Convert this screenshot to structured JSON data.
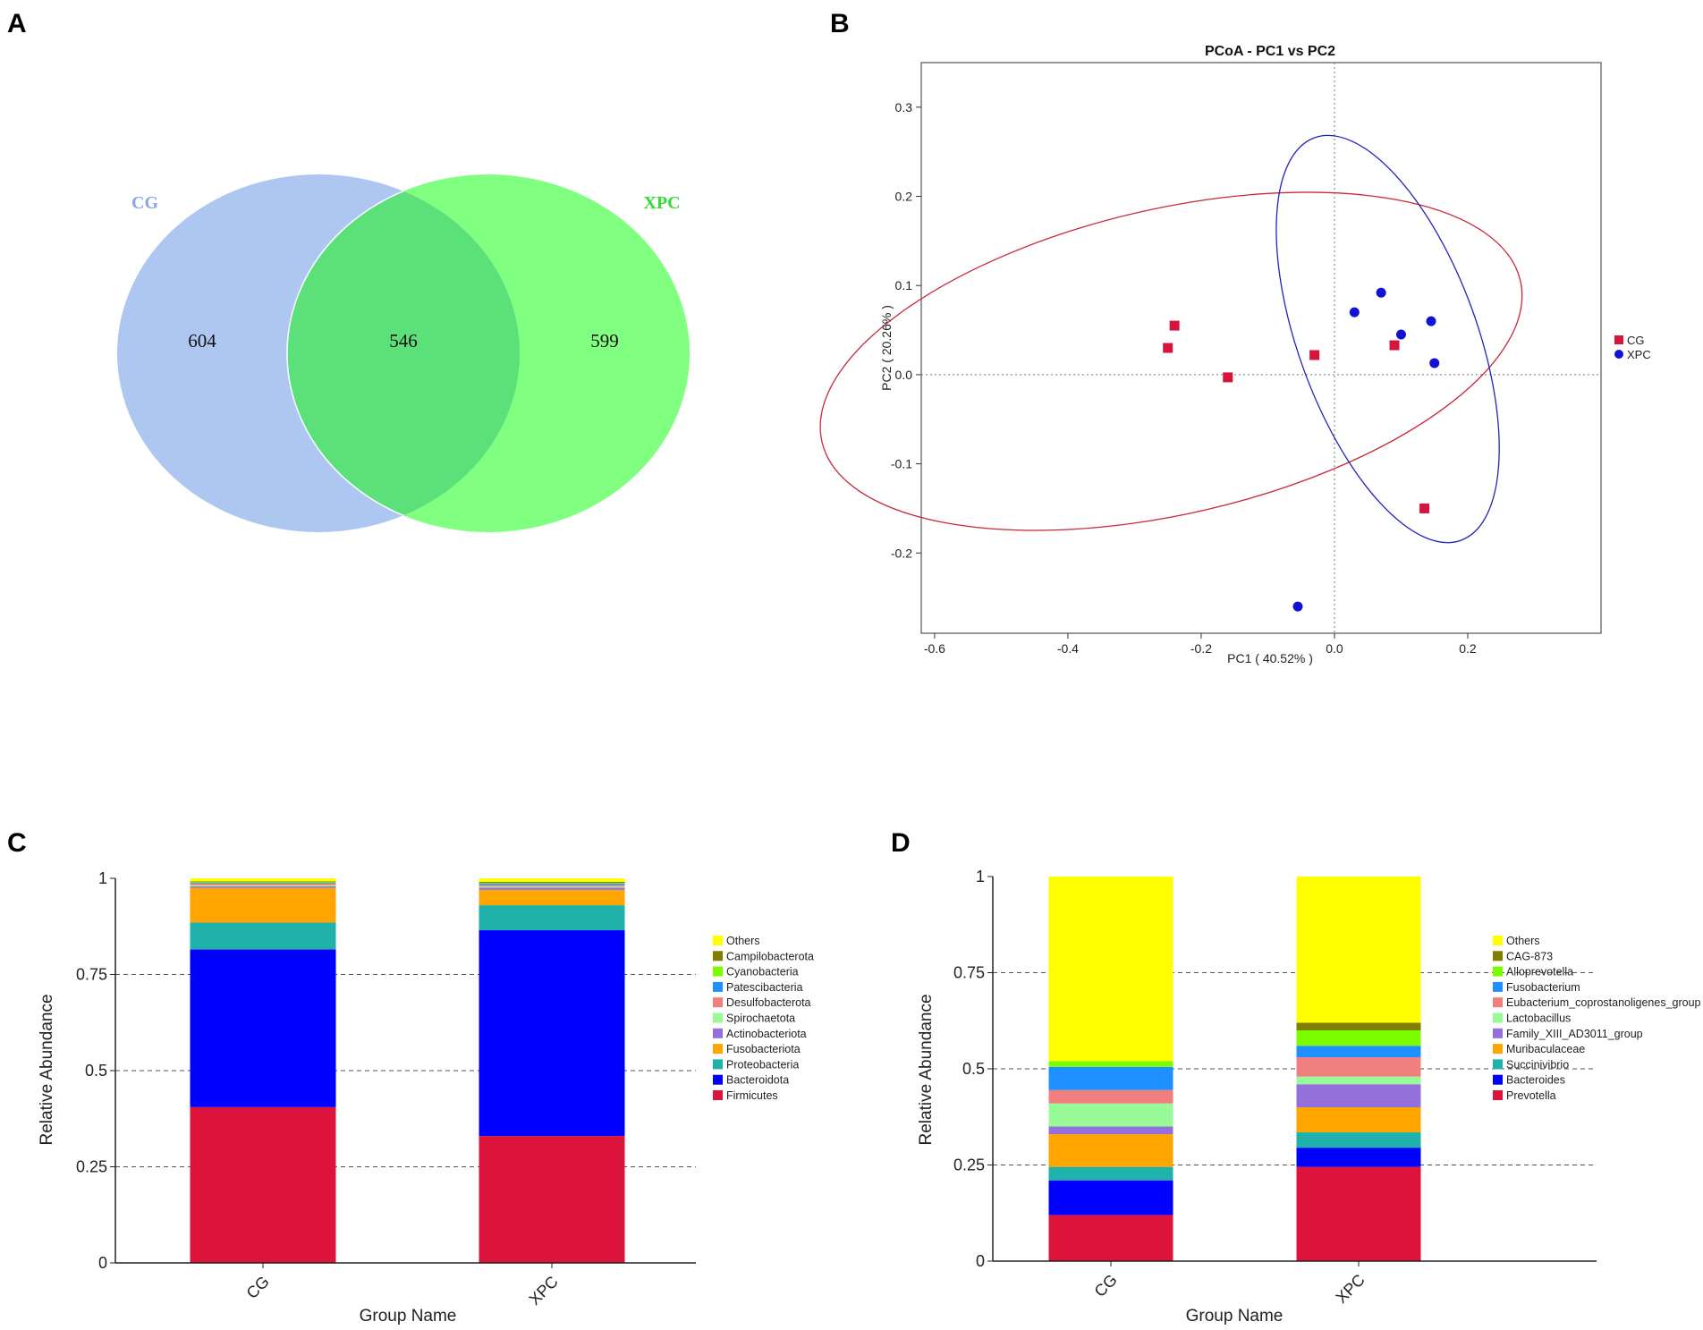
{
  "panels": {
    "a": "A",
    "b": "B",
    "c": "C",
    "d": "D"
  },
  "chart_data": [
    {
      "type": "venn",
      "sets": [
        {
          "name": "CG",
          "unique": 604,
          "color": "#aec7f0",
          "label_color": "#8aa6e6"
        },
        {
          "name": "XPC",
          "unique": 599,
          "color": "#80ff80",
          "label_color": "#33dd33"
        }
      ],
      "intersection": 546,
      "intersection_color": "#5ce07a"
    },
    {
      "type": "scatter",
      "title": "PCoA - PC1 vs PC2",
      "xlabel": "PC1 ( 40.52% )",
      "ylabel": "PC2 ( 20.26% )",
      "xlim": [
        -0.62,
        0.4
      ],
      "ylim": [
        -0.29,
        0.35
      ],
      "xticks": [
        -0.6,
        -0.4,
        -0.2,
        0.0,
        0.2
      ],
      "xtick_labels": [
        "-0.6",
        "-0.4",
        "-0.2",
        "0.0",
        "0.2"
      ],
      "yticks": [
        -0.2,
        -0.1,
        0.0,
        0.1,
        0.2,
        0.3
      ],
      "ytick_labels": [
        "-0.2",
        "-0.1",
        "0.0",
        "0.1",
        "0.2",
        "0.3"
      ],
      "series": [
        {
          "name": "CG",
          "marker": "square",
          "color": "#d7143c",
          "points": [
            [
              -0.24,
              0.055
            ],
            [
              -0.25,
              0.03
            ],
            [
              -0.16,
              -0.003
            ],
            [
              -0.03,
              0.022
            ],
            [
              0.09,
              0.033
            ],
            [
              0.135,
              -0.15
            ]
          ]
        },
        {
          "name": "XPC",
          "marker": "circle",
          "color": "#1212d6",
          "points": [
            [
              0.03,
              0.07
            ],
            [
              0.07,
              0.092
            ],
            [
              0.1,
              0.045
            ],
            [
              0.145,
              0.06
            ],
            [
              0.15,
              0.013
            ],
            [
              -0.055,
              -0.26
            ]
          ]
        }
      ],
      "ellipses": [
        {
          "series": "CG",
          "color": "#c8283a",
          "cx": -0.245,
          "cy": 0.015,
          "rx": 0.46,
          "ry": 0.145,
          "angle": -13
        },
        {
          "series": "XPC",
          "color": "#2323b8",
          "cx": 0.08,
          "cy": 0.04,
          "rx": 0.275,
          "ry": 0.085,
          "angle": 70
        }
      ],
      "reference_lines": {
        "x": 0,
        "y": 0
      },
      "legend": "right"
    },
    {
      "type": "stacked_bar",
      "level": "phylum",
      "categories": [
        "CG",
        "XPC"
      ],
      "xlabel": "Group Name",
      "ylabel": "Relative Abundance",
      "ylim": [
        0,
        1
      ],
      "yticks": [
        0,
        0.25,
        0.5,
        0.75,
        1
      ],
      "ytick_labels": [
        "0",
        "0.25",
        "0.5",
        "0.75",
        "1"
      ],
      "series": [
        {
          "name": "Firmicutes",
          "color": "#dc143c",
          "values": [
            0.405,
            0.33
          ]
        },
        {
          "name": "Bacteroidota",
          "color": "#0000ff",
          "values": [
            0.41,
            0.535
          ]
        },
        {
          "name": "Proteobacteria",
          "color": "#20b2aa",
          "values": [
            0.07,
            0.065
          ]
        },
        {
          "name": "Fusobacteriota",
          "color": "#ffa500",
          "values": [
            0.09,
            0.04
          ]
        },
        {
          "name": "Actinobacteriota",
          "color": "#9370db",
          "values": [
            0.004,
            0.006
          ]
        },
        {
          "name": "Spirochaetota",
          "color": "#98fb98",
          "values": [
            0.003,
            0.003
          ]
        },
        {
          "name": "Desulfobacterota",
          "color": "#f08080",
          "values": [
            0.004,
            0.004
          ]
        },
        {
          "name": "Patescibacteria",
          "color": "#1e90ff",
          "values": [
            0.002,
            0.003
          ]
        },
        {
          "name": "Cyanobacteria",
          "color": "#7cfc00",
          "values": [
            0.002,
            0.002
          ]
        },
        {
          "name": "Campilobacterota",
          "color": "#808000",
          "values": [
            0.002,
            0.003
          ]
        },
        {
          "name": "Others",
          "color": "#ffff00",
          "values": [
            0.008,
            0.009
          ]
        }
      ]
    },
    {
      "type": "stacked_bar",
      "level": "genus",
      "categories": [
        "CG",
        "XPC"
      ],
      "xlabel": "Group Name",
      "ylabel": "Relative Abundance",
      "ylim": [
        0,
        1
      ],
      "yticks": [
        0,
        0.25,
        0.5,
        0.75,
        1
      ],
      "ytick_labels": [
        "0",
        "0.25",
        "0.5",
        "0.75",
        "1"
      ],
      "series": [
        {
          "name": "Prevotella",
          "color": "#dc143c",
          "values": [
            0.12,
            0.245
          ]
        },
        {
          "name": "Bacteroides",
          "color": "#0000ff",
          "values": [
            0.09,
            0.05
          ]
        },
        {
          "name": "Succinivibrio",
          "color": "#20b2aa",
          "values": [
            0.035,
            0.04
          ]
        },
        {
          "name": "Muribaculaceae",
          "color": "#ffa500",
          "values": [
            0.085,
            0.065
          ]
        },
        {
          "name": "Family_XIII_AD3011_group",
          "color": "#9370db",
          "values": [
            0.02,
            0.06
          ]
        },
        {
          "name": "Lactobacillus",
          "color": "#98fb98",
          "values": [
            0.06,
            0.02
          ]
        },
        {
          "name": "Eubacterium_coprostanoligenes_group",
          "color": "#f08080",
          "values": [
            0.035,
            0.05
          ]
        },
        {
          "name": "Fusobacterium",
          "color": "#1e90ff",
          "values": [
            0.06,
            0.03
          ]
        },
        {
          "name": "Alloprevotella",
          "color": "#7cfc00",
          "values": [
            0.015,
            0.04
          ]
        },
        {
          "name": "CAG-873",
          "color": "#808000",
          "values": [
            0.0,
            0.02
          ]
        },
        {
          "name": "Others",
          "color": "#ffff00",
          "values": [
            0.48,
            0.38
          ]
        }
      ]
    }
  ]
}
